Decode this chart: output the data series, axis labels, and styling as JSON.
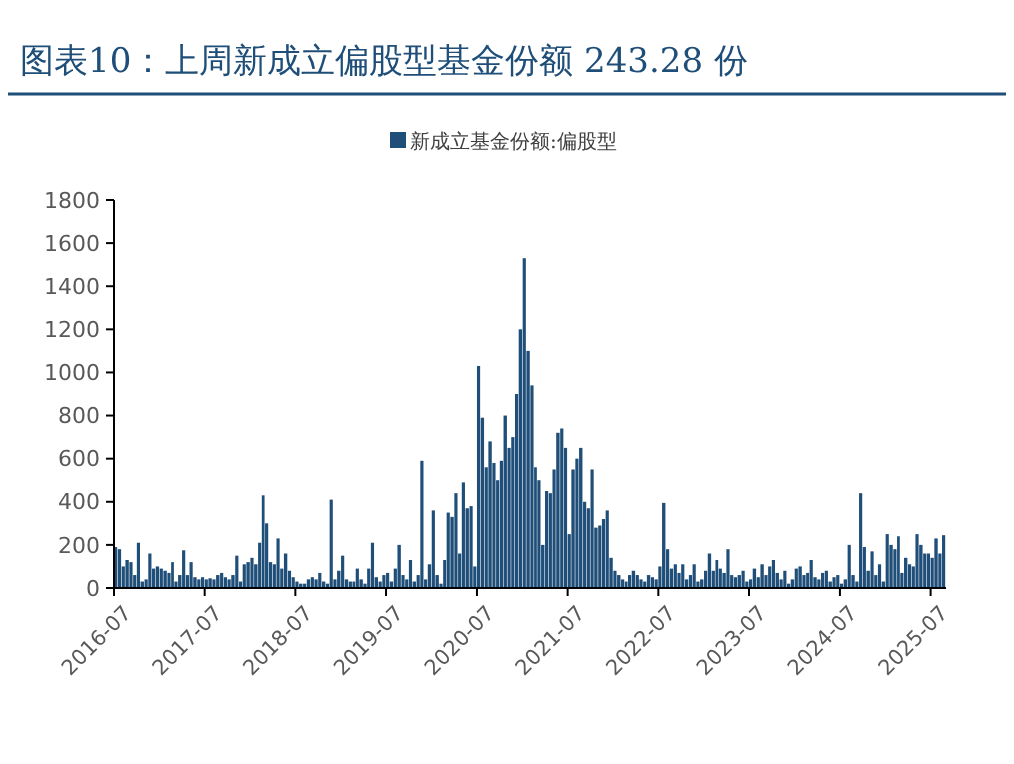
{
  "chart_data": {
    "type": "bar",
    "title": "图表10：上周新成立偏股型基金份额 243.28 份",
    "x": [
      "2016-07-01",
      "2016-07-16",
      "2016-08-01",
      "2016-08-16",
      "2016-09-01",
      "2016-09-16",
      "2016-10-01",
      "2016-10-16",
      "2016-11-01",
      "2016-11-16",
      "2016-12-01",
      "2016-12-16",
      "2017-01-01",
      "2017-01-16",
      "2017-02-01",
      "2017-02-16",
      "2017-03-01",
      "2017-03-16",
      "2017-04-01",
      "2017-04-16",
      "2017-05-01",
      "2017-05-16",
      "2017-06-01",
      "2017-06-16",
      "2017-07-01",
      "2017-07-16",
      "2017-08-01",
      "2017-08-16",
      "2017-09-01",
      "2017-09-16",
      "2017-10-01",
      "2017-10-16",
      "2017-11-01",
      "2017-11-16",
      "2017-12-01",
      "2017-12-16",
      "2018-01-01",
      "2018-01-16",
      "2018-02-01",
      "2018-02-16",
      "2018-03-01",
      "2018-03-16",
      "2018-04-01",
      "2018-04-16",
      "2018-05-01",
      "2018-05-16",
      "2018-06-01",
      "2018-06-16",
      "2018-07-01",
      "2018-07-16",
      "2018-08-01",
      "2018-08-16",
      "2018-09-01",
      "2018-09-16",
      "2018-10-01",
      "2018-10-16",
      "2018-11-01",
      "2018-11-16",
      "2018-12-01",
      "2018-12-16",
      "2019-01-01",
      "2019-01-16",
      "2019-02-01",
      "2019-02-16",
      "2019-03-01",
      "2019-03-16",
      "2019-04-01",
      "2019-04-16",
      "2019-05-01",
      "2019-05-16",
      "2019-06-01",
      "2019-06-16",
      "2019-07-01",
      "2019-07-16",
      "2019-08-01",
      "2019-08-16",
      "2019-09-01",
      "2019-09-16",
      "2019-10-01",
      "2019-10-16",
      "2019-11-01",
      "2019-11-16",
      "2019-12-01",
      "2019-12-16",
      "2020-01-01",
      "2020-01-16",
      "2020-02-01",
      "2020-02-16",
      "2020-03-01",
      "2020-03-16",
      "2020-04-01",
      "2020-04-16",
      "2020-05-01",
      "2020-05-16",
      "2020-06-01",
      "2020-06-16",
      "2020-07-01",
      "2020-07-16",
      "2020-08-01",
      "2020-08-16",
      "2020-09-01",
      "2020-09-16",
      "2020-10-01",
      "2020-10-16",
      "2020-11-01",
      "2020-11-16",
      "2020-12-01",
      "2020-12-16",
      "2021-01-01",
      "2021-01-16",
      "2021-02-01",
      "2021-02-16",
      "2021-03-01",
      "2021-03-16",
      "2021-04-01",
      "2021-04-16",
      "2021-05-01",
      "2021-05-16",
      "2021-06-01",
      "2021-06-16",
      "2021-07-01",
      "2021-07-16",
      "2021-08-01",
      "2021-08-16",
      "2021-09-01",
      "2021-09-16",
      "2021-10-01",
      "2021-10-16",
      "2021-11-01",
      "2021-11-16",
      "2021-12-01",
      "2021-12-16",
      "2022-01-01",
      "2022-01-16",
      "2022-02-01",
      "2022-02-16",
      "2022-03-01",
      "2022-03-16",
      "2022-04-01",
      "2022-04-16",
      "2022-05-01",
      "2022-05-16",
      "2022-06-01",
      "2022-06-16",
      "2022-07-01",
      "2022-07-16",
      "2022-08-01",
      "2022-08-16",
      "2022-09-01",
      "2022-09-16",
      "2022-10-01",
      "2022-10-16",
      "2022-11-01",
      "2022-11-16",
      "2022-12-01",
      "2022-12-16",
      "2023-01-01",
      "2023-01-16",
      "2023-02-01",
      "2023-02-16",
      "2023-03-01",
      "2023-03-16",
      "2023-04-01",
      "2023-04-16",
      "2023-05-01",
      "2023-05-16",
      "2023-06-01",
      "2023-06-16",
      "2023-07-01",
      "2023-07-16",
      "2023-08-01",
      "2023-08-16",
      "2023-09-01",
      "2023-09-16",
      "2023-10-01",
      "2023-10-16",
      "2023-11-01",
      "2023-11-16",
      "2023-12-01",
      "2023-12-16",
      "2024-01-01",
      "2024-01-16",
      "2024-02-01",
      "2024-02-16",
      "2024-03-01",
      "2024-03-16",
      "2024-04-01",
      "2024-04-16",
      "2024-05-01",
      "2024-05-16",
      "2024-06-01",
      "2024-06-16",
      "2024-07-01",
      "2024-07-16",
      "2024-08-01",
      "2024-08-16",
      "2024-09-01",
      "2024-09-16",
      "2024-10-01",
      "2024-10-16",
      "2024-11-01",
      "2024-11-16",
      "2024-12-01",
      "2024-12-16",
      "2025-01-01",
      "2025-01-16",
      "2025-02-01",
      "2025-02-16",
      "2025-03-01",
      "2025-03-16",
      "2025-04-01",
      "2025-04-16",
      "2025-05-01",
      "2025-05-16",
      "2025-06-01",
      "2025-06-16",
      "2025-07-01",
      "2025-07-16",
      "2025-08-01",
      "2025-08-16"
    ],
    "series": [
      {
        "name": "新成立基金份额:偏股型",
        "color": "#1f4e79",
        "values": [
          190,
          180,
          100,
          130,
          120,
          60,
          210,
          30,
          40,
          160,
          90,
          100,
          90,
          80,
          70,
          120,
          30,
          60,
          175,
          60,
          120,
          50,
          40,
          50,
          40,
          45,
          40,
          60,
          70,
          50,
          40,
          60,
          150,
          30,
          110,
          120,
          140,
          110,
          210,
          430,
          300,
          120,
          110,
          230,
          90,
          160,
          80,
          50,
          30,
          20,
          20,
          40,
          50,
          40,
          70,
          30,
          20,
          410,
          40,
          80,
          150,
          40,
          30,
          30,
          90,
          40,
          20,
          90,
          210,
          50,
          30,
          60,
          70,
          30,
          90,
          200,
          60,
          40,
          130,
          30,
          60,
          590,
          40,
          110,
          360,
          60,
          20,
          130,
          350,
          330,
          440,
          160,
          490,
          370,
          380,
          100,
          1030,
          790,
          560,
          680,
          580,
          500,
          590,
          800,
          650,
          700,
          900,
          1200,
          1530,
          1100,
          940,
          560,
          500,
          200,
          450,
          440,
          550,
          720,
          740,
          650,
          250,
          550,
          600,
          650,
          400,
          370,
          550,
          280,
          290,
          320,
          360,
          140,
          80,
          60,
          40,
          30,
          60,
          80,
          60,
          40,
          30,
          60,
          50,
          40,
          100,
          395,
          180,
          90,
          110,
          70,
          110,
          40,
          60,
          110,
          30,
          40,
          80,
          160,
          80,
          130,
          90,
          70,
          180,
          60,
          50,
          60,
          80,
          30,
          40,
          90,
          50,
          110,
          60,
          100,
          130,
          70,
          40,
          80,
          20,
          40,
          90,
          100,
          60,
          70,
          130,
          50,
          40,
          70,
          80,
          30,
          50,
          60,
          20,
          40,
          200,
          60,
          30,
          440,
          190,
          80,
          170,
          60,
          110,
          30,
          250,
          200,
          180,
          240,
          70,
          140,
          110,
          100,
          250,
          200,
          160,
          160,
          140,
          230,
          160,
          245
        ]
      }
    ],
    "xlim": [
      "2016-07-01",
      "2025-09-01"
    ],
    "xticks": [
      "2016-07",
      "2017-07",
      "2018-07",
      "2019-07",
      "2020-07",
      "2021-07",
      "2022-07",
      "2023-07",
      "2024-07",
      "2025-07"
    ],
    "ylim": [
      0,
      1800
    ],
    "yticks": [
      0,
      200,
      400,
      600,
      800,
      1000,
      1200,
      1400,
      1600,
      1800
    ],
    "grid": false,
    "legend": "top"
  }
}
